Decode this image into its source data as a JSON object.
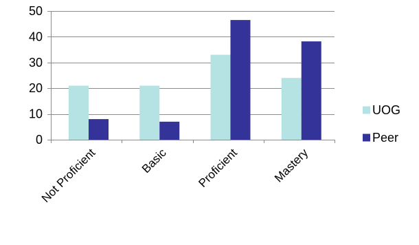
{
  "chart_data": {
    "type": "bar",
    "title": "",
    "xlabel": "",
    "ylabel": "",
    "categories": [
      "Not Proficient",
      "Basic",
      "Proficient",
      "Mastery"
    ],
    "series": [
      {
        "name": "UOG",
        "values": [
          21,
          21,
          33,
          24
        ],
        "color": "#b5e2e3"
      },
      {
        "name": "Peer",
        "values": [
          8,
          7,
          46.5,
          38.2
        ],
        "color": "#333399"
      }
    ],
    "ylim": [
      0,
      50
    ],
    "yticks": [
      "0",
      "10",
      "20",
      "30",
      "40",
      "50"
    ],
    "grid": true,
    "legend_position": "right"
  }
}
